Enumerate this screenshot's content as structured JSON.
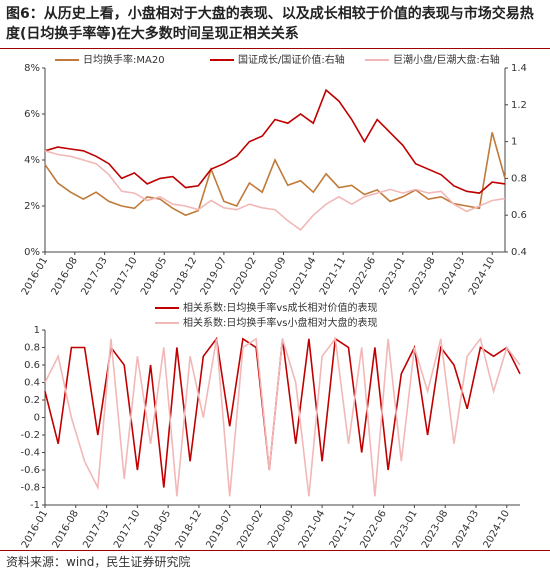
{
  "title": "图6：从历史上看，小盘相对于大盘的表现、以及成长相较于价值的表现与市场交易热度(日均换手率等)在大多数时间呈现正相关关系",
  "source": "资料来源：wind，民生证券研究院",
  "chart_data": [
    {
      "type": "line",
      "x": [
        "2016-01",
        "2016-04",
        "2016-07",
        "2016-10",
        "2017-01",
        "2017-04",
        "2017-07",
        "2017-10",
        "2018-01",
        "2018-04",
        "2018-07",
        "2018-10",
        "2019-01",
        "2019-04",
        "2019-07",
        "2019-10",
        "2020-01",
        "2020-04",
        "2020-07",
        "2020-10",
        "2021-01",
        "2021-04",
        "2021-07",
        "2021-10",
        "2022-01",
        "2022-04",
        "2022-07",
        "2022-10",
        "2023-01",
        "2023-04",
        "2023-07",
        "2023-10",
        "2024-01",
        "2024-04",
        "2024-07",
        "2024-10",
        "2025-01"
      ],
      "xlim": [
        "2016-01",
        "2025-01"
      ],
      "xticks": [
        "2016-01",
        "2016-08",
        "2017-03",
        "2017-10",
        "2018-05",
        "2018-12",
        "2019-07",
        "2020-02",
        "2020-09",
        "2021-04",
        "2021-11",
        "2022-06",
        "2023-01",
        "2023-08",
        "2024-03",
        "2024-10"
      ],
      "ylim": [
        0,
        8
      ],
      "yticks": [
        {
          "value": 0,
          "label": "0%"
        },
        {
          "value": 2,
          "label": "2%"
        },
        {
          "value": 4,
          "label": "4%"
        },
        {
          "value": 6,
          "label": "6%"
        },
        {
          "value": 8,
          "label": "8%"
        }
      ],
      "y2lim": [
        0.4,
        1.4
      ],
      "y2ticks": [
        0.4,
        0.6,
        0.8,
        1,
        1.2,
        1.4
      ],
      "grid": false,
      "series": [
        {
          "name": "日均换手率:MA20",
          "color": "#c07a3a",
          "values": [
            3.8,
            3.0,
            2.6,
            2.3,
            2.6,
            2.2,
            2.0,
            1.9,
            2.4,
            2.3,
            1.9,
            1.6,
            1.8,
            3.6,
            2.2,
            2.0,
            3.0,
            2.6,
            4.0,
            2.9,
            3.1,
            2.6,
            3.4,
            2.8,
            2.9,
            2.5,
            2.7,
            2.2,
            2.4,
            2.7,
            2.3,
            2.4,
            2.1,
            2.0,
            1.9,
            5.2,
            3.2
          ]
        },
        {
          "name": "国证成长/国证价值:右轴",
          "color": "#c00000",
          "axis": "y2",
          "values": [
            0.95,
            0.97,
            0.96,
            0.95,
            0.92,
            0.88,
            0.8,
            0.83,
            0.77,
            0.8,
            0.81,
            0.75,
            0.76,
            0.85,
            0.88,
            0.92,
            1.0,
            1.03,
            1.12,
            1.1,
            1.15,
            1.1,
            1.28,
            1.22,
            1.12,
            1.0,
            1.12,
            1.05,
            0.98,
            0.88,
            0.85,
            0.82,
            0.76,
            0.73,
            0.72,
            0.78,
            0.77
          ]
        },
        {
          "name": "巨潮小盘/巨潮大盘:右轴",
          "color": "#f2b8b8",
          "axis": "y2",
          "values": [
            0.95,
            0.93,
            0.92,
            0.9,
            0.88,
            0.82,
            0.73,
            0.72,
            0.68,
            0.7,
            0.66,
            0.65,
            0.63,
            0.68,
            0.64,
            0.63,
            0.66,
            0.64,
            0.63,
            0.57,
            0.52,
            0.6,
            0.66,
            0.7,
            0.66,
            0.7,
            0.72,
            0.74,
            0.72,
            0.74,
            0.72,
            0.73,
            0.66,
            0.62,
            0.65,
            0.68,
            0.69
          ]
        }
      ]
    },
    {
      "type": "line",
      "x": [
        "2016-01",
        "2016-04",
        "2016-07",
        "2016-10",
        "2017-01",
        "2017-04",
        "2017-07",
        "2017-10",
        "2018-01",
        "2018-04",
        "2018-07",
        "2018-10",
        "2019-01",
        "2019-04",
        "2019-07",
        "2019-10",
        "2020-01",
        "2020-04",
        "2020-07",
        "2020-10",
        "2021-01",
        "2021-04",
        "2021-07",
        "2021-10",
        "2022-01",
        "2022-04",
        "2022-07",
        "2022-10",
        "2023-01",
        "2023-04",
        "2023-07",
        "2023-10",
        "2024-01",
        "2024-04",
        "2024-07",
        "2024-10",
        "2025-01"
      ],
      "xlim": [
        "2016-01",
        "2025-01"
      ],
      "xticks": [
        "2016-01",
        "2016-08",
        "2017-03",
        "2017-10",
        "2018-05",
        "2018-12",
        "2019-07",
        "2020-02",
        "2020-09",
        "2021-04",
        "2021-11",
        "2022-06",
        "2023-01",
        "2023-08",
        "2024-03",
        "2024-10"
      ],
      "ylim": [
        -1,
        1
      ],
      "yticks": [
        -1,
        -0.8,
        -0.6,
        -0.4,
        -0.2,
        0,
        0.2,
        0.4,
        0.6,
        0.8,
        1
      ],
      "grid": false,
      "series": [
        {
          "name": "相关系数:日均换手率vs成长相对价值的表现",
          "color": "#c00000",
          "values": [
            0.3,
            -0.3,
            0.8,
            0.8,
            -0.2,
            0.8,
            0.6,
            -0.6,
            0.6,
            -0.8,
            0.8,
            -0.5,
            0.7,
            0.9,
            -0.1,
            0.9,
            0.8,
            -0.6,
            0.9,
            -0.3,
            0.9,
            -0.5,
            0.9,
            0.8,
            -0.4,
            0.8,
            -0.6,
            0.5,
            0.8,
            -0.2,
            0.8,
            0.6,
            0.1,
            0.8,
            0.7,
            0.8,
            0.5
          ]
        },
        {
          "name": "相关系数:日均换手率vs小盘相对大盘的表现",
          "color": "#f2b8b8",
          "values": [
            0.4,
            0.7,
            0.0,
            -0.5,
            -0.8,
            0.9,
            -0.7,
            0.7,
            -0.3,
            0.8,
            -0.9,
            0.7,
            0.0,
            0.9,
            -0.9,
            0.8,
            0.9,
            -0.6,
            0.9,
            0.4,
            -0.9,
            0.7,
            0.9,
            -0.3,
            0.8,
            -0.9,
            0.9,
            -0.5,
            0.8,
            0.3,
            0.9,
            -0.3,
            0.7,
            0.9,
            0.3,
            0.8,
            0.6
          ]
        }
      ]
    }
  ]
}
